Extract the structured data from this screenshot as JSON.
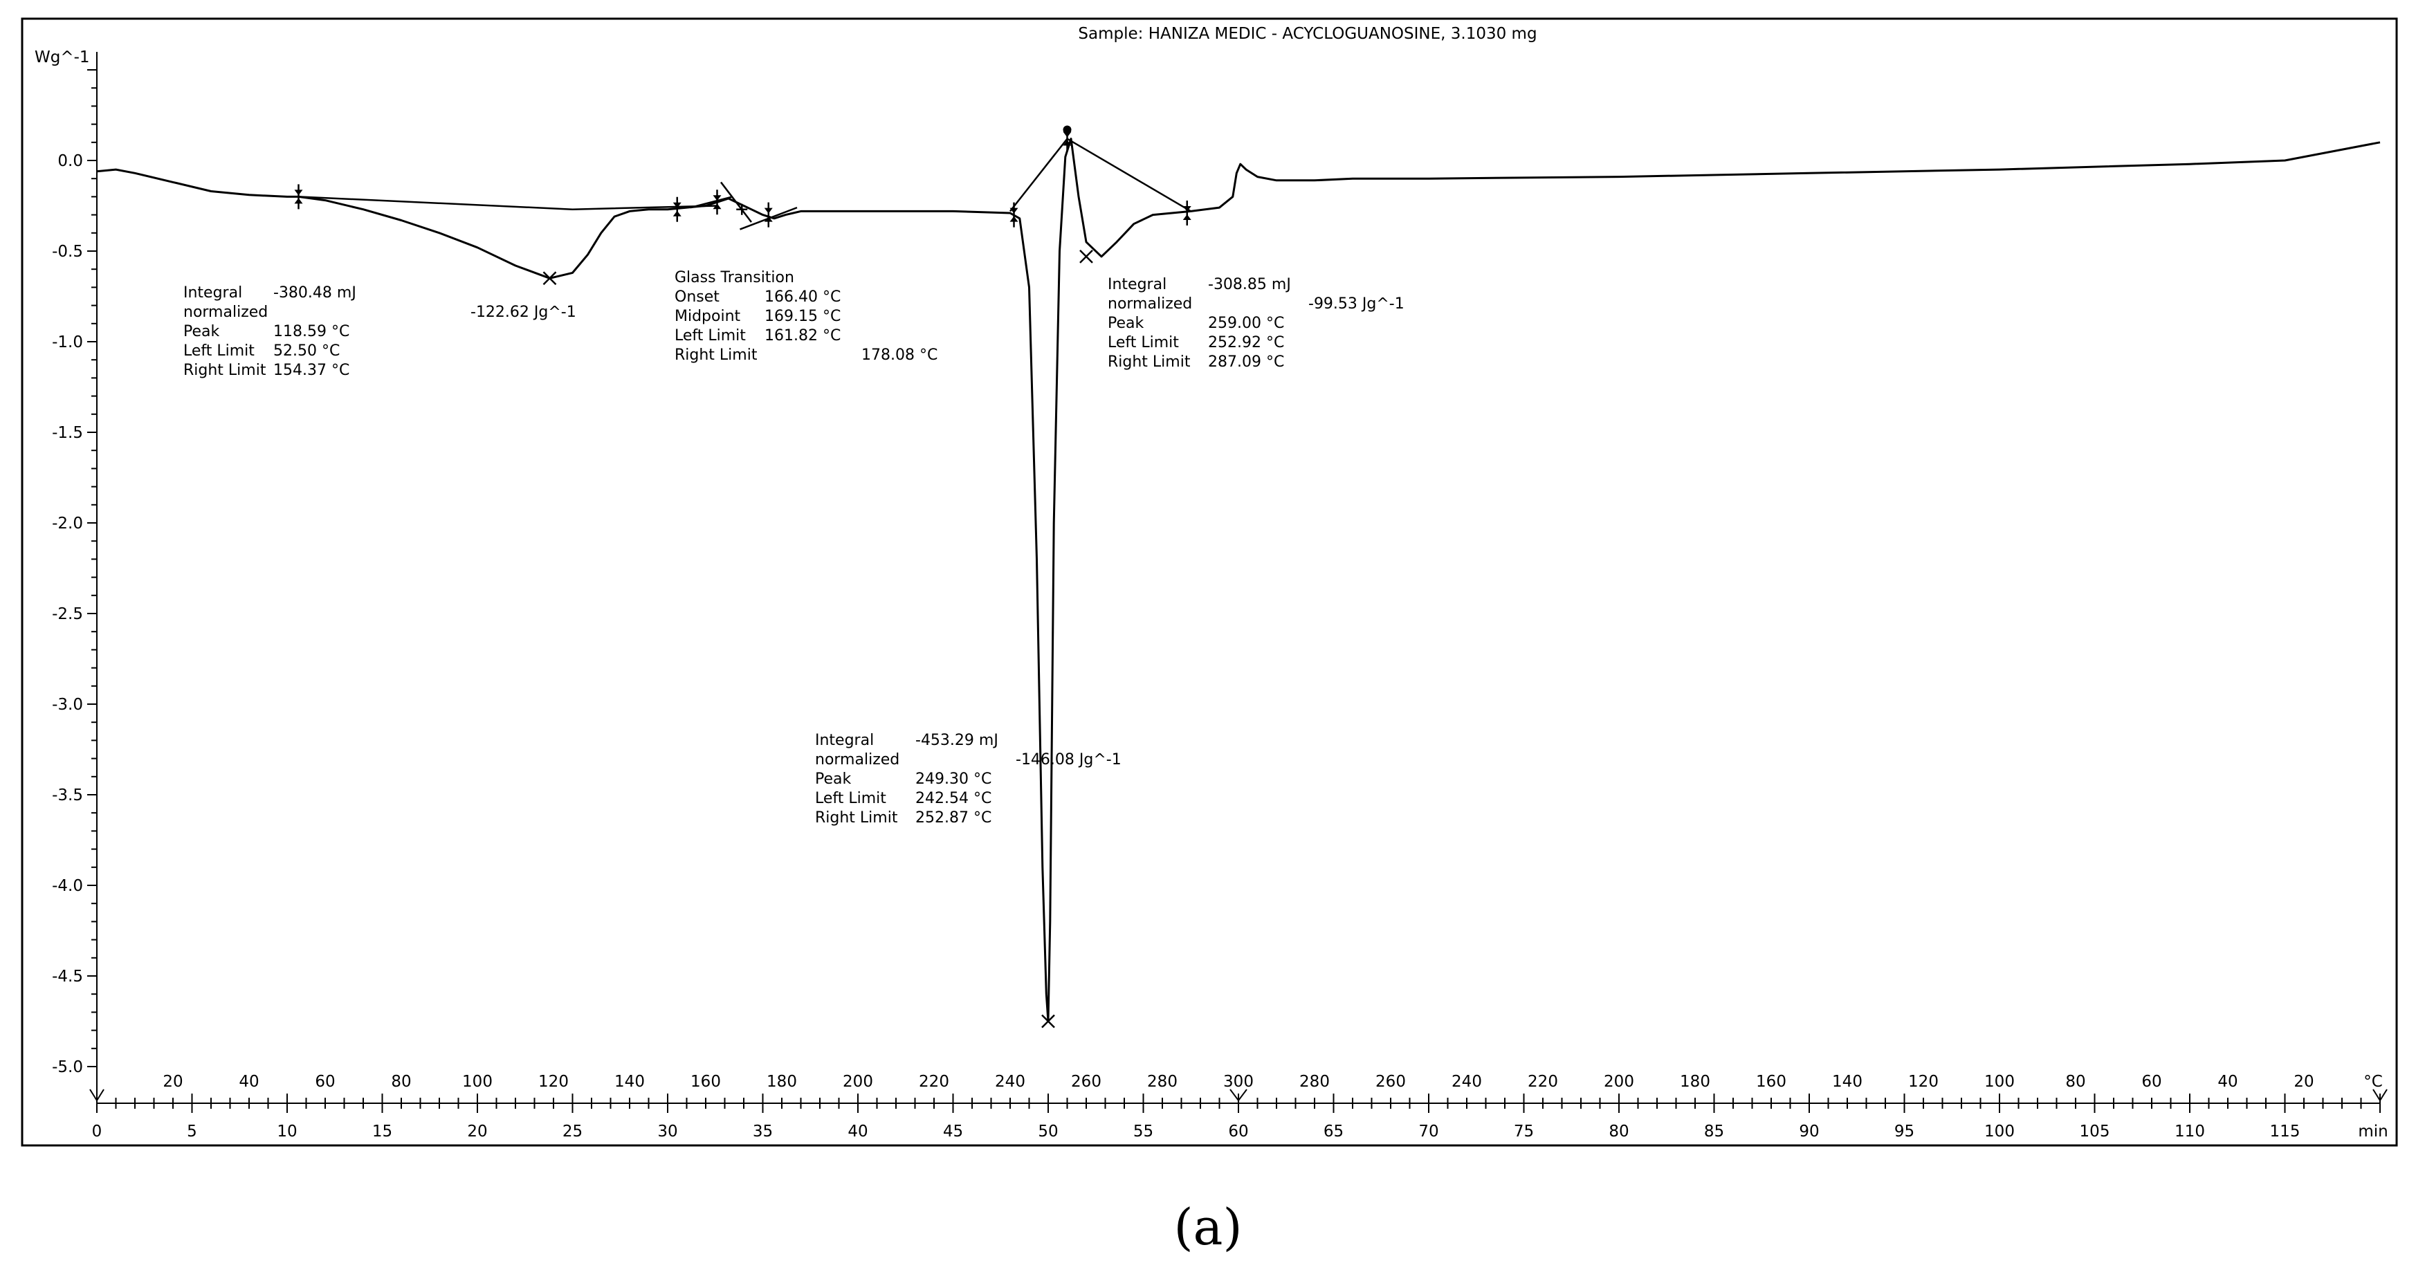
{
  "chart_data": {
    "type": "line",
    "title": "Sample: HANIZA MEDIC - ACYCLOGUANOSINE, 3.1030 mg",
    "ylabel": "Wg^-1",
    "ylim": [
      -5.1,
      0.6
    ],
    "yticks": [
      "0.0",
      "-0.5",
      "-1.0",
      "-1.5",
      "-2.0",
      "-2.5",
      "-3.0",
      "-3.5",
      "-4.0",
      "-4.5",
      "-5.0"
    ],
    "xlim": [
      0,
      120
    ],
    "xlabel_time_unit": "min",
    "xlabel_temp_unit": "°C",
    "time_ticks": [
      "0",
      "5",
      "10",
      "15",
      "20",
      "25",
      "30",
      "35",
      "40",
      "45",
      "50",
      "55",
      "60",
      "65",
      "70",
      "75",
      "80",
      "85",
      "90",
      "95",
      "100",
      "105",
      "110",
      "115"
    ],
    "temp_ticks_heating": [
      "20",
      "40",
      "60",
      "80",
      "100",
      "120",
      "140",
      "160",
      "180",
      "200",
      "220",
      "240",
      "260",
      "280",
      "300"
    ],
    "temp_ticks_cooling": [
      "280",
      "260",
      "240",
      "220",
      "200",
      "180",
      "160",
      "140",
      "120",
      "100",
      "80",
      "60",
      "40",
      "20"
    ],
    "series": [
      {
        "x": [
          0,
          1,
          2,
          4,
          6,
          8,
          10,
          10.6,
          12,
          14,
          16,
          18,
          20,
          22,
          23.8,
          25,
          25.8,
          26.5,
          27.2,
          28,
          29,
          30,
          31,
          32,
          32.6,
          33.2,
          33.8,
          34.4,
          35,
          35.6,
          36.2,
          37,
          40,
          45,
          48,
          48.5,
          49,
          49.4,
          49.7,
          49.9,
          50,
          50.1,
          50.3,
          50.6,
          50.9,
          51.2,
          51.6,
          52,
          52.8,
          53.6,
          54.5,
          55.5,
          56.5,
          57.5,
          59,
          59.7,
          59.9,
          60.1,
          60.4,
          61,
          62,
          64,
          66,
          70,
          80,
          90,
          100,
          110,
          115,
          120
        ],
        "y": [
          -0.06,
          -0.05,
          -0.07,
          -0.12,
          -0.17,
          -0.19,
          -0.2,
          -0.2,
          -0.22,
          -0.27,
          -0.33,
          -0.4,
          -0.48,
          -0.58,
          -0.65,
          -0.62,
          -0.52,
          -0.4,
          -0.31,
          -0.28,
          -0.27,
          -0.27,
          -0.26,
          -0.25,
          -0.23,
          -0.21,
          -0.24,
          -0.27,
          -0.3,
          -0.32,
          -0.3,
          -0.28,
          -0.28,
          -0.28,
          -0.29,
          -0.32,
          -0.7,
          -2.2,
          -3.9,
          -4.6,
          -4.75,
          -4.2,
          -2.0,
          -0.5,
          0.02,
          0.12,
          -0.2,
          -0.45,
          -0.53,
          -0.45,
          -0.35,
          -0.3,
          -0.29,
          -0.28,
          -0.26,
          -0.2,
          -0.07,
          -0.02,
          -0.05,
          -0.09,
          -0.11,
          -0.11,
          -0.1,
          -0.1,
          -0.09,
          -0.07,
          -0.05,
          -0.02,
          0.0,
          0.1
        ]
      }
    ],
    "annotations": [
      {
        "rows": [
          [
            "Integral",
            "-380.48 mJ"
          ],
          [
            " normalized",
            "-122.62 Jg^-1"
          ],
          [
            "Peak",
            "118.59 °C"
          ],
          [
            "Left Limit",
            "52.50 °C"
          ],
          [
            "Right Limit",
            "154.37 °C"
          ]
        ]
      },
      {
        "rows": [
          [
            "Glass Transition",
            ""
          ],
          [
            "Onset",
            "166.40 °C"
          ],
          [
            "Midpoint",
            "169.15 °C"
          ],
          [
            "Left Limit",
            "161.82 °C"
          ],
          [
            "Right Limit",
            "178.08 °C"
          ]
        ]
      },
      {
        "rows": [
          [
            "Integral",
            "-453.29 mJ"
          ],
          [
            " normalized",
            "-146.08 Jg^-1"
          ],
          [
            "Peak",
            "249.30 °C"
          ],
          [
            "Left Limit",
            "242.54 °C"
          ],
          [
            "Right Limit",
            "252.87 °C"
          ]
        ]
      },
      {
        "rows": [
          [
            "Integral",
            "-308.85 mJ"
          ],
          [
            " normalized",
            "-99.53 Jg^-1"
          ],
          [
            "Peak",
            "259.00 °C"
          ],
          [
            "Left Limit",
            "252.92 °C"
          ],
          [
            "Right Limit",
            "287.09 °C"
          ]
        ]
      }
    ],
    "peaks": [
      {
        "x": 23.8,
        "y": -0.65
      },
      {
        "x": 50.0,
        "y": -4.75
      },
      {
        "x": 52.0,
        "y": -0.53
      }
    ],
    "baselines": [
      {
        "x": [
          10.6,
          25,
          32.6
        ],
        "y": [
          -0.2,
          -0.27,
          -0.25
        ]
      },
      {
        "x": [
          48,
          51,
          57.5
        ],
        "y": [
          -0.28,
          0.12,
          -0.28
        ]
      }
    ],
    "limit_markers": [
      {
        "x": 10.6,
        "y": -0.2
      },
      {
        "x": 30.5,
        "y": -0.27
      },
      {
        "x": 32.6,
        "y": -0.23
      },
      {
        "x": 35.3,
        "y": -0.3
      },
      {
        "x": 48.2,
        "y": -0.3
      },
      {
        "x": 51.0,
        "y": 0.12
      },
      {
        "x": 57.3,
        "y": -0.29
      }
    ]
  },
  "caption": "(a)"
}
